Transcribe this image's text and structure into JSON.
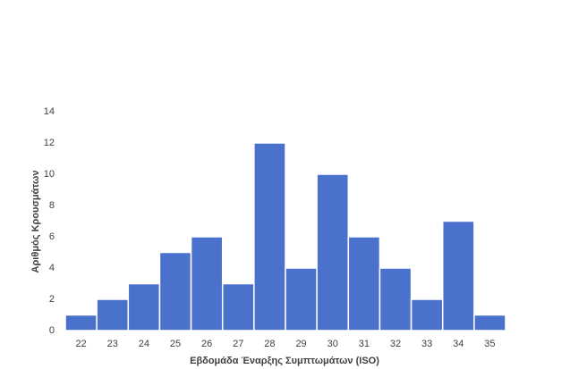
{
  "chart_data": {
    "type": "bar",
    "x_label": "Εβδομάδα Έναρξης Συμπτωμάτων (ISO)",
    "y_label": "Αριθμός Κρουσμάτων",
    "categories": [
      "22",
      "23",
      "24",
      "25",
      "26",
      "27",
      "28",
      "29",
      "30",
      "31",
      "32",
      "33",
      "34",
      "35"
    ],
    "values": [
      1,
      2,
      3,
      5,
      6,
      3,
      12,
      4,
      10,
      6,
      4,
      2,
      7,
      1
    ],
    "color": "#4a72cc",
    "ylim": [
      0,
      14
    ],
    "yticks": [
      0,
      2,
      4,
      6,
      8,
      10,
      12,
      14
    ],
    "grid": false
  }
}
